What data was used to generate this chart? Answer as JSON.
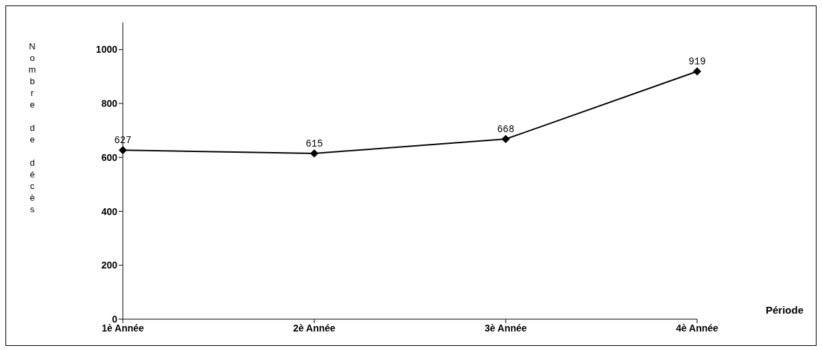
{
  "chart_data": {
    "type": "line",
    "xlabel": "Période",
    "ylabel": "Nombre de décès",
    "categories": [
      "1è Année",
      "2è Année",
      "3è Année",
      "4è Année"
    ],
    "series": [
      {
        "color": "#000000",
        "values": [
          627,
          615,
          668,
          919
        ]
      }
    ],
    "ylim": [
      0,
      1100
    ],
    "yticks": [
      0,
      200,
      400,
      600,
      800,
      1000
    ],
    "grid": false,
    "legend": false,
    "marker": "diamond",
    "line_style": "solid",
    "data_labels": true
  }
}
